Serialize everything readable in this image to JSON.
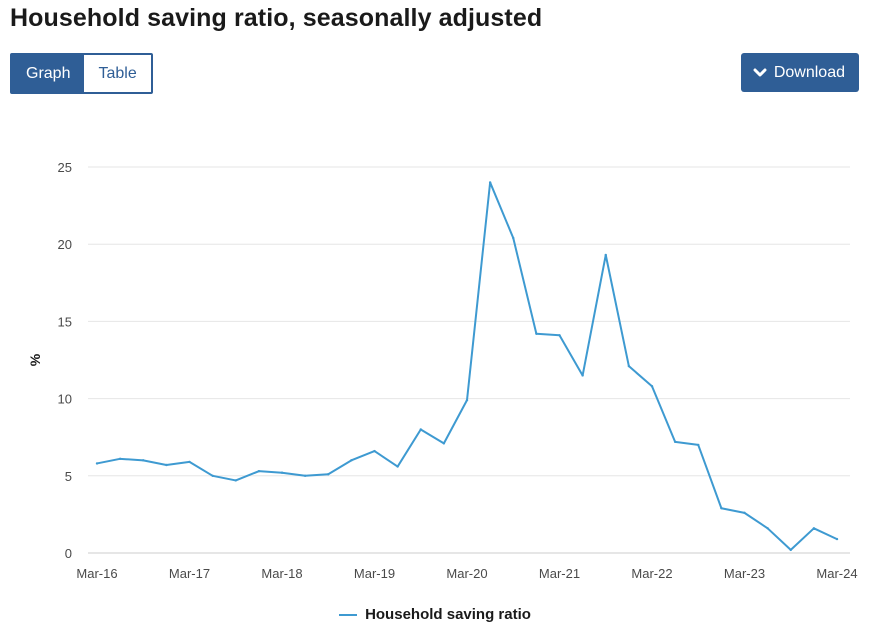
{
  "header": {
    "title": "Household saving ratio, seasonally adjusted"
  },
  "tabs": [
    {
      "label": "Graph",
      "active": true
    },
    {
      "label": "Table",
      "active": false
    }
  ],
  "toolbar": {
    "download_label": "Download",
    "download_icon": "chevron-down-icon"
  },
  "colors": {
    "accent": "#2f5e96",
    "series": "#3e9ad1",
    "grid": "#e6e6e6"
  },
  "chart_data": {
    "type": "line",
    "title": "Household saving ratio, seasonally adjusted",
    "xlabel": "",
    "ylabel": "%",
    "ylim": [
      0,
      25
    ],
    "yticks": [
      0,
      5,
      10,
      15,
      20,
      25
    ],
    "grid": true,
    "legend_position": "bottom-center",
    "x_tick_labels": [
      "Mar-16",
      "Mar-17",
      "Mar-18",
      "Mar-19",
      "Mar-20",
      "Mar-21",
      "Mar-22",
      "Mar-23",
      "Mar-24"
    ],
    "x": [
      "Mar-16",
      "Jun-16",
      "Sep-16",
      "Dec-16",
      "Mar-17",
      "Jun-17",
      "Sep-17",
      "Dec-17",
      "Mar-18",
      "Jun-18",
      "Sep-18",
      "Dec-18",
      "Mar-19",
      "Jun-19",
      "Sep-19",
      "Dec-19",
      "Mar-20",
      "Jun-20",
      "Sep-20",
      "Dec-20",
      "Mar-21",
      "Jun-21",
      "Sep-21",
      "Dec-21",
      "Mar-22",
      "Jun-22",
      "Sep-22",
      "Dec-22",
      "Mar-23",
      "Jun-23",
      "Sep-23",
      "Dec-23",
      "Mar-24"
    ],
    "series": [
      {
        "name": "Household saving ratio",
        "values": [
          5.8,
          6.1,
          6.0,
          5.7,
          5.9,
          5.0,
          4.7,
          5.3,
          5.2,
          5.0,
          5.1,
          6.0,
          6.6,
          5.6,
          8.0,
          7.1,
          9.9,
          24.0,
          20.4,
          14.2,
          14.1,
          11.5,
          19.3,
          12.1,
          10.8,
          7.2,
          7.0,
          2.9,
          2.6,
          1.6,
          0.2,
          1.6,
          0.9
        ]
      }
    ]
  }
}
